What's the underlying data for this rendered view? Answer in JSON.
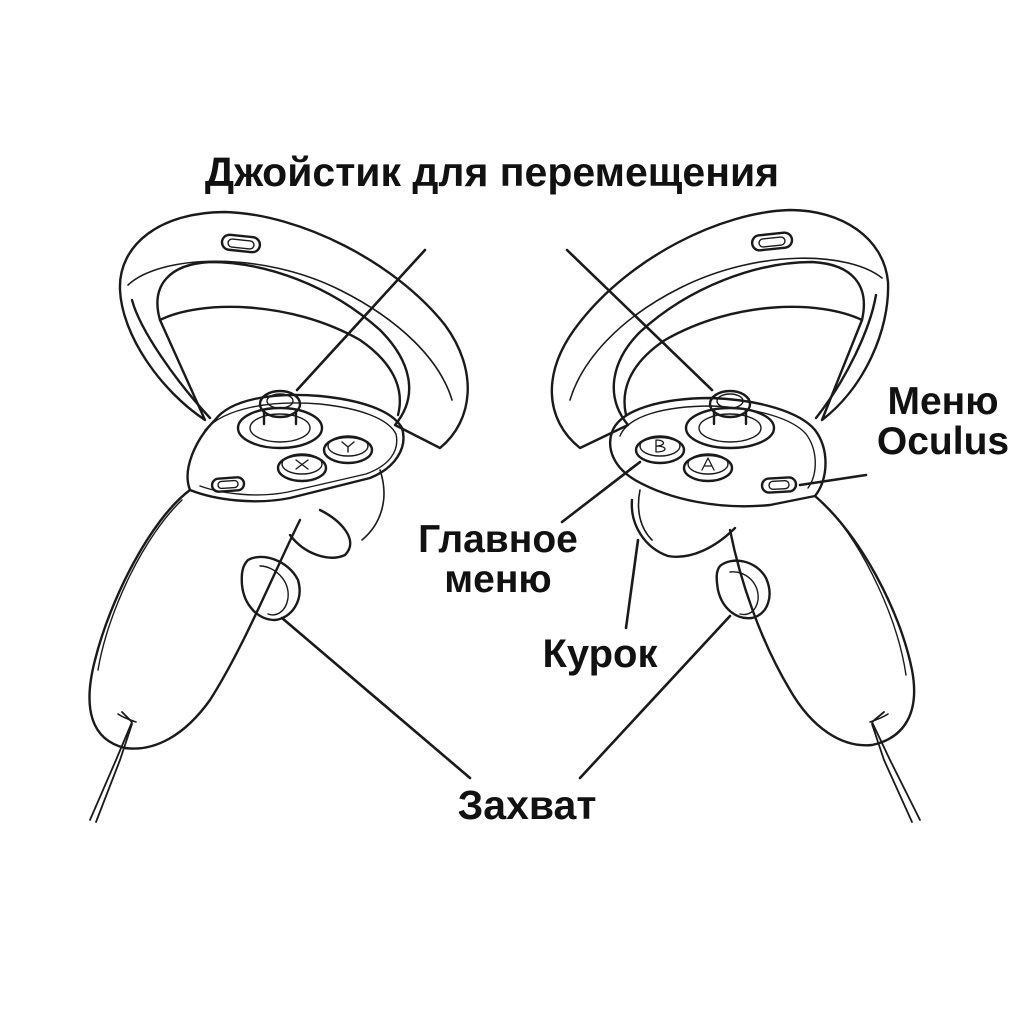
{
  "labels": {
    "joystick": "Джойстик для перемещения",
    "oculus_menu": [
      "Меню",
      "Oculus"
    ],
    "main_menu": [
      "Главное",
      "меню"
    ],
    "trigger": "Курок",
    "grip": "Захват"
  },
  "buttons": {
    "left": [
      "Y",
      "X"
    ],
    "right": [
      "B",
      "A"
    ]
  },
  "colors": {
    "stroke": "#1a1a1a",
    "background": "#ffffff",
    "text": "#111111"
  }
}
